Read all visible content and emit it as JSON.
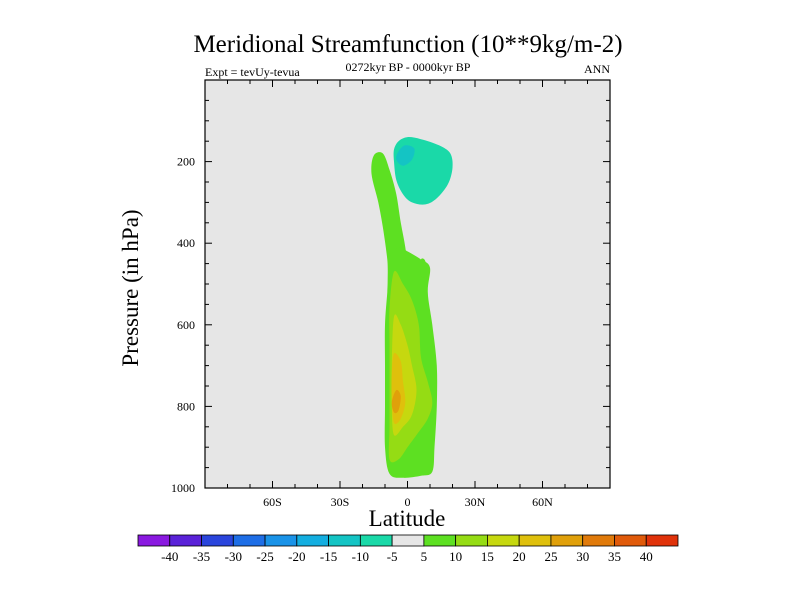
{
  "chart_data": {
    "type": "contour",
    "title": "Meridional Streamfunction (10**9kg/m-2)",
    "subtitle_left": "Expt = tevUy-tevua",
    "subtitle_center": "0272kyr BP - 0000kyr BP",
    "subtitle_right": "ANN",
    "xlabel": "Latitude",
    "ylabel": "Pressure (in hPa)",
    "xlim": [
      -90,
      90
    ],
    "ylim": [
      1000,
      0
    ],
    "x_ticks": [
      {
        "value": -60,
        "label": "60S"
      },
      {
        "value": -30,
        "label": "30S"
      },
      {
        "value": 0,
        "label": "0"
      },
      {
        "value": 30,
        "label": "30N"
      },
      {
        "value": 60,
        "label": "60N"
      }
    ],
    "y_ticks": [
      {
        "value": 200,
        "label": "200"
      },
      {
        "value": 400,
        "label": "400"
      },
      {
        "value": 600,
        "label": "600"
      },
      {
        "value": 800,
        "label": "800"
      },
      {
        "value": 1000,
        "label": "1000"
      }
    ],
    "background_color": "#e6e6e6",
    "colorbar": {
      "levels": [
        "-40",
        "-35",
        "-30",
        "-25",
        "-20",
        "-15",
        "-10",
        "-5",
        "5",
        "10",
        "15",
        "20",
        "25",
        "30",
        "35",
        "40"
      ],
      "colors": [
        "#8a19e0",
        "#5a22d8",
        "#2a45dc",
        "#1e6ee6",
        "#1a93e8",
        "#13aee0",
        "#14c4c4",
        "#1ad9a8",
        "#e6e6e6",
        "#5de022",
        "#95dc14",
        "#c6d80f",
        "#dfc00c",
        "#e0a00a",
        "#e07a0a",
        "#e05a0a",
        "#e0320a"
      ]
    },
    "regions": [
      {
        "name": "upper-negative-cell",
        "level": -5,
        "color": "#1ad9a8",
        "points": [
          [
            -4,
            150
          ],
          [
            0,
            140
          ],
          [
            6,
            145
          ],
          [
            14,
            160
          ],
          [
            19,
            180
          ],
          [
            20,
            215
          ],
          [
            18,
            255
          ],
          [
            13,
            290
          ],
          [
            8,
            305
          ],
          [
            2,
            300
          ],
          [
            -2,
            280
          ],
          [
            -5,
            245
          ],
          [
            -6,
            200
          ],
          [
            -6,
            170
          ]
        ]
      },
      {
        "name": "upper-negative-core",
        "level": -10,
        "color": "#14c4c4",
        "points": [
          [
            -4,
            175
          ],
          [
            -1,
            160
          ],
          [
            3,
            168
          ],
          [
            2,
            195
          ],
          [
            -2,
            210
          ],
          [
            -5,
            195
          ]
        ]
      },
      {
        "name": "left-positive-limb",
        "level": 5,
        "color": "#5de022",
        "points": [
          [
            -15,
            185
          ],
          [
            -11,
            180
          ],
          [
            -8,
            220
          ],
          [
            -5,
            280
          ],
          [
            -3,
            350
          ],
          [
            -1,
            410
          ],
          [
            0,
            470
          ],
          [
            -2,
            520
          ],
          [
            -8,
            520
          ],
          [
            -9,
            440
          ],
          [
            -11,
            360
          ],
          [
            -13,
            300
          ],
          [
            -16,
            230
          ]
        ]
      },
      {
        "name": "main-positive-cell",
        "level": 5,
        "color": "#5de022",
        "points": [
          [
            -8,
            440
          ],
          [
            -4,
            410
          ],
          [
            0,
            420
          ],
          [
            6,
            440
          ],
          [
            10,
            460
          ],
          [
            9,
            520
          ],
          [
            11,
            600
          ],
          [
            13,
            700
          ],
          [
            13,
            800
          ],
          [
            12,
            900
          ],
          [
            11,
            960
          ],
          [
            6,
            970
          ],
          [
            -2,
            975
          ],
          [
            -8,
            965
          ],
          [
            -10,
            900
          ],
          [
            -10,
            800
          ],
          [
            -10,
            700
          ],
          [
            -10,
            600
          ],
          [
            -9,
            520
          ]
        ]
      },
      {
        "name": "main-positive-level-10",
        "level": 10,
        "color": "#95dc14",
        "points": [
          [
            -6,
            470
          ],
          [
            -2,
            500
          ],
          [
            2,
            540
          ],
          [
            5,
            600
          ],
          [
            6,
            680
          ],
          [
            9,
            740
          ],
          [
            11,
            790
          ],
          [
            9,
            830
          ],
          [
            4,
            870
          ],
          [
            0,
            900
          ],
          [
            -4,
            930
          ],
          [
            -8,
            930
          ],
          [
            -8,
            850
          ],
          [
            -8,
            750
          ],
          [
            -8,
            650
          ],
          [
            -8,
            560
          ]
        ]
      },
      {
        "name": "main-positive-level-15",
        "level": 15,
        "color": "#c6d80f",
        "points": [
          [
            -6,
            580
          ],
          [
            -3,
            600
          ],
          [
            0,
            650
          ],
          [
            2,
            700
          ],
          [
            4,
            760
          ],
          [
            2,
            820
          ],
          [
            -2,
            850
          ],
          [
            -6,
            870
          ],
          [
            -7,
            800
          ],
          [
            -7,
            700
          ]
        ]
      },
      {
        "name": "main-positive-level-20",
        "level": 20,
        "color": "#dfc00c",
        "points": [
          [
            -6,
            670
          ],
          [
            -3,
            690
          ],
          [
            -2,
            740
          ],
          [
            -1,
            790
          ],
          [
            -3,
            830
          ],
          [
            -6,
            840
          ],
          [
            -7,
            780
          ],
          [
            -7,
            720
          ]
        ]
      },
      {
        "name": "main-positive-level-25",
        "level": 25,
        "color": "#e0a00a",
        "points": [
          [
            -5,
            760
          ],
          [
            -3,
            775
          ],
          [
            -4,
            810
          ],
          [
            -6,
            815
          ],
          [
            -7,
            790
          ]
        ]
      },
      {
        "name": "right-thin-strip",
        "level": 5,
        "color": "#5de022",
        "points": [
          [
            6,
            440
          ],
          [
            8,
            445
          ],
          [
            8,
            480
          ],
          [
            6,
            480
          ]
        ]
      }
    ]
  }
}
